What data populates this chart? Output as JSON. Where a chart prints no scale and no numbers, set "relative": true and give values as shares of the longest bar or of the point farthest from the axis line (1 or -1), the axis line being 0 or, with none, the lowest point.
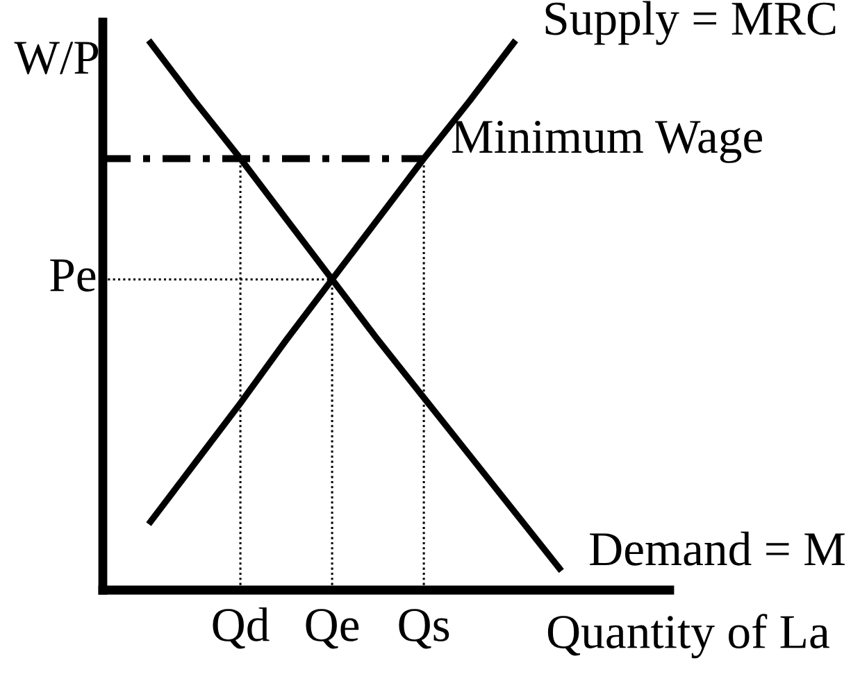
{
  "chart_data": {
    "type": "line",
    "relative": true,
    "xlabel": "Quantity of La",
    "ylabel": "W/P",
    "categories": [
      null,
      null,
      null,
      "Qd",
      null,
      "Qe",
      null,
      "Qs",
      null,
      null,
      null
    ],
    "series": [
      {
        "name": "Supply = MRC",
        "color": "#000000",
        "values": [
          null,
          0.12,
          0.23,
          0.34,
          0.455,
          0.565,
          0.675,
          0.785,
          0.89,
          1.0,
          null
        ]
      },
      {
        "name": "Demand = M",
        "color": "#000000",
        "values": [
          null,
          1.0,
          0.89,
          0.785,
          0.675,
          0.565,
          0.455,
          0.35,
          0.245,
          0.14,
          0.035
        ]
      },
      {
        "name": "Minimum Wage",
        "color": "#000000",
        "line_style": "dashdot",
        "values": [
          0.785,
          0.785,
          0.785,
          0.785,
          0.785,
          0.785,
          0.785,
          0.785,
          null,
          null,
          null
        ]
      },
      {
        "name": "Pe",
        "color": "#000000",
        "line_style": "dotted",
        "values": [
          0.565,
          0.565,
          0.565,
          0.565,
          0.565,
          0.565,
          null,
          null,
          null,
          null,
          null
        ]
      },
      {
        "color": "#000000",
        "line_style": "dotted",
        "x": [
          "Qd",
          "Qd"
        ],
        "values": [
          0,
          0.785
        ]
      },
      {
        "color": "#000000",
        "line_style": "dotted",
        "x": [
          "Qe",
          "Qe"
        ],
        "values": [
          0,
          0.565
        ]
      },
      {
        "color": "#000000",
        "line_style": "dotted",
        "x": [
          "Qs",
          "Qs"
        ],
        "values": [
          0,
          0.785
        ]
      }
    ]
  }
}
